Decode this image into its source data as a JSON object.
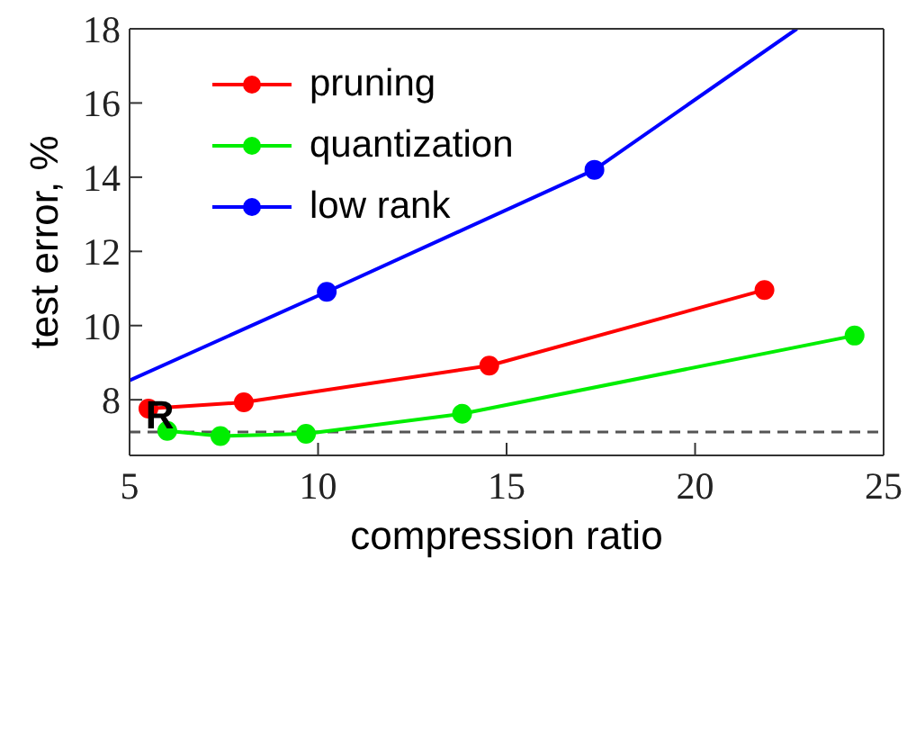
{
  "chart_data": {
    "type": "line",
    "xlabel": "compression ratio",
    "ylabel": "test error, %",
    "xlim": [
      5,
      25
    ],
    "xticks": [
      5,
      10,
      15,
      20,
      25
    ],
    "ylim": [
      6.5,
      18
    ],
    "yticks": [
      8,
      10,
      12,
      14,
      16,
      18
    ],
    "legend": "top left",
    "marker": "circle",
    "line_style": "solid",
    "series": [
      {
        "name": "pruning",
        "color": "#ff0000",
        "x": [
          5.5,
          8.03,
          14.54,
          21.84
        ],
        "values": [
          7.76,
          7.93,
          8.92,
          10.96
        ]
      },
      {
        "name": "quantization",
        "color": "#00ee00",
        "x": [
          6.0,
          7.41,
          9.68,
          13.82,
          24.23
        ],
        "values": [
          7.16,
          7.02,
          7.08,
          7.62,
          9.73
        ]
      },
      {
        "name": "low rank",
        "color": "#0000ff",
        "x": [
          5,
          10.23,
          17.33,
          22.7
        ],
        "values": [
          8.52,
          10.91,
          14.2,
          18
        ]
      }
    ],
    "ref_lines": [
      {
        "axis": "y",
        "value": 7.13,
        "color": "#555555",
        "line_style": "dashed"
      }
    ],
    "annotations": [
      {
        "text": "R",
        "x": 5.8,
        "y": 7.6
      }
    ]
  }
}
